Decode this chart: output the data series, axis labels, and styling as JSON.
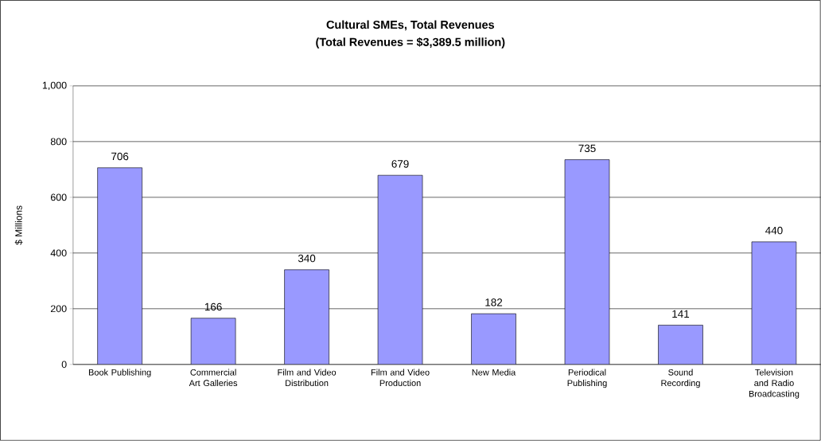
{
  "chart_data": {
    "type": "bar",
    "title": "Cultural SMEs, Total Revenues",
    "subtitle": "(Total Revenues = $3,389.5 million)",
    "ylabel": "$ Millions",
    "categories": [
      "Book Publishing",
      "Commercial Art Galleries",
      "Film and Video Distribution",
      "Film and Video Production",
      "New Media",
      "Periodical Publishing",
      "Sound Recording",
      "Television and Radio Broadcasting"
    ],
    "values": [
      706,
      166,
      340,
      679,
      182,
      735,
      141,
      440
    ],
    "color": "#9999ff",
    "ylim": [
      0,
      1000
    ],
    "yticks": [
      0,
      200,
      400,
      600,
      800,
      {
        "value": 1000,
        "label": "1,000"
      }
    ],
    "grid": "y",
    "data_labels": true
  }
}
